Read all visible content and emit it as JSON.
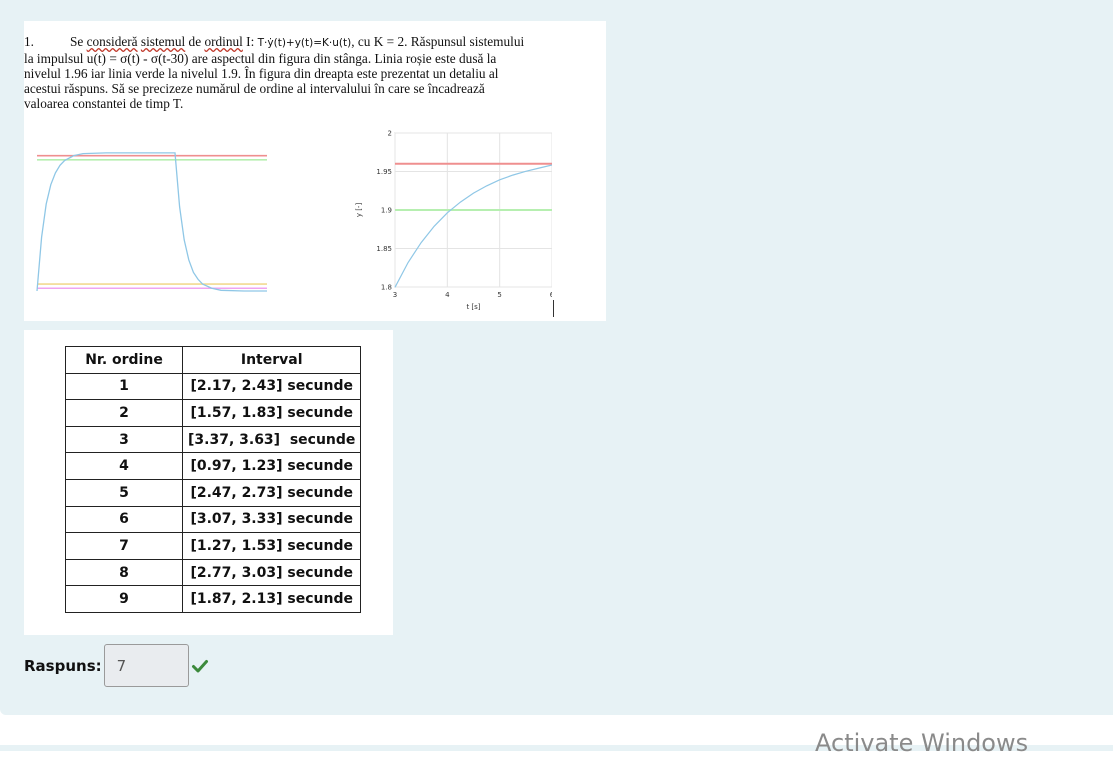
{
  "question": {
    "number": "1.",
    "line1_parts": [
      "Se ",
      "consideră",
      " ",
      "sistemul",
      " de ",
      "ordinul",
      " I: "
    ],
    "equation": "T·ẏ(t)+y(t)=K·u(t)",
    "line1_end": ", cu K = 2. Răspunsul sistemului",
    "line2": "la impulsul u(t) = σ(t) - σ(t-30) are aspectul din figura din stânga. Linia roșie este dusă la",
    "line3": "nivelul 1.96 iar linia verde la nivelul 1.9. În figura din dreapta este prezentat un detaliu al",
    "line4": "acestui răspuns. Să se precizeze numărul de ordine al intervalului în care se încadrează",
    "line5": "valoarea constantei de timp T."
  },
  "chart_data": [
    {
      "type": "line",
      "title": "",
      "xlabel": "",
      "ylabel": "",
      "x": [
        0,
        1,
        2,
        3,
        4,
        5,
        6,
        8,
        10,
        15,
        20,
        25,
        30,
        31,
        32,
        33,
        34,
        35,
        36,
        38,
        40,
        45,
        50
      ],
      "series": [
        {
          "color": "#8fc7e6",
          "values": [
            0,
            0.78,
            1.26,
            1.54,
            1.71,
            1.82,
            1.89,
            1.96,
            1.99,
            2.0,
            2.0,
            2.0,
            2.0,
            1.22,
            0.74,
            0.45,
            0.27,
            0.17,
            0.1,
            0.04,
            0.01,
            0,
            0
          ]
        }
      ],
      "horizontal_lines": [
        {
          "color": "#ef8f8f",
          "y": 1.96
        },
        {
          "color": "#b6efb0",
          "y": 1.9
        },
        {
          "color": "#f0a4f0",
          "y": 0.04
        },
        {
          "color": "#f2da90",
          "y": 0.1
        }
      ],
      "xlim": [
        0,
        50
      ],
      "ylim": [
        0,
        2.1
      ],
      "grid": false,
      "axes_visible": false
    },
    {
      "type": "line",
      "title": "",
      "xlabel": "t [s]",
      "ylabel": "y [-]",
      "x_ticks": [
        "3",
        "4",
        "5",
        "6"
      ],
      "y_ticks": [
        "1.8",
        "1.85",
        "1.9",
        "1.95",
        "2"
      ],
      "x": [
        3,
        3.25,
        3.5,
        3.75,
        4,
        4.25,
        4.5,
        4.75,
        5,
        5.25,
        5.5,
        5.75,
        6
      ],
      "series": [
        {
          "color": "#8fc7e6",
          "values": [
            1.7996,
            1.8318,
            1.8577,
            1.879,
            1.8963,
            1.9103,
            1.9219,
            1.9313,
            1.9392,
            1.9453,
            1.9503,
            1.9544,
            1.9585
          ]
        }
      ],
      "horizontal_lines": [
        {
          "color": "#ef8f8f",
          "y": 1.96
        },
        {
          "color": "#b6efb0",
          "y": 1.9
        }
      ],
      "xlim": [
        3,
        6
      ],
      "ylim": [
        1.8,
        2.0
      ],
      "grid": true
    }
  ],
  "table": {
    "headers": [
      "Nr. ordine",
      "Interval"
    ],
    "rows": [
      [
        "1",
        "[2.17, 2.43] secunde"
      ],
      [
        "2",
        "[1.57, 1.83] secunde"
      ],
      [
        "3",
        "[3.37, 3.63]  secunde"
      ],
      [
        "4",
        "[0.97, 1.23] secunde"
      ],
      [
        "5",
        "[2.47, 2.73] secunde"
      ],
      [
        "6",
        "[3.07, 3.33] secunde"
      ],
      [
        "7",
        "[1.27, 1.53] secunde"
      ],
      [
        "8",
        "[2.77, 3.03] secunde"
      ],
      [
        "9",
        "[1.87, 2.13] secunde"
      ]
    ]
  },
  "answer": {
    "label": "Raspuns:",
    "value": "7",
    "status": "correct",
    "status_icon": "check-icon",
    "status_color": "#3c8a3c"
  },
  "watermark": "Activate Windows"
}
